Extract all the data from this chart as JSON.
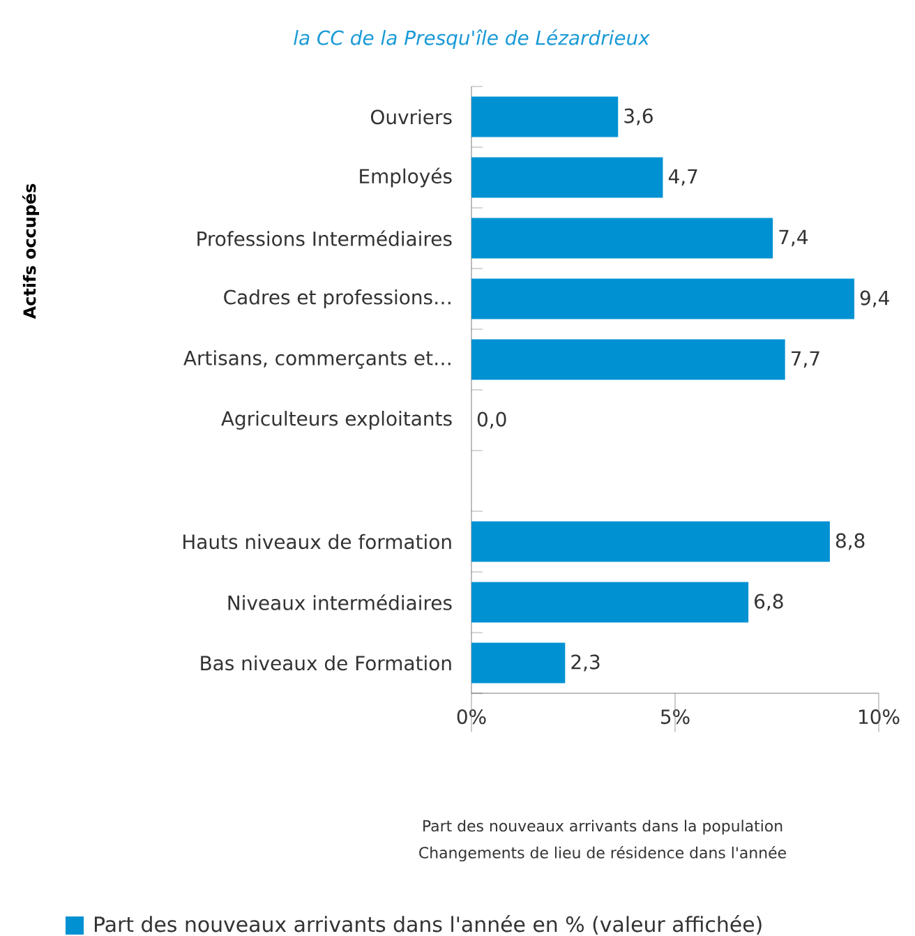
{
  "chart_data": {
    "type": "bar",
    "orientation": "horizontal",
    "title": "la CC de la Presqu'île de Lézardrieux",
    "annotations": [
      "Actifs occupés",
      "Part des nouveaux arrivants dans la population",
      "Changements de lieu de résidence dans l'année"
    ],
    "categories": [
      "Ouvriers",
      "Employés",
      "Professions Intermédiaires",
      "Cadres et professions…",
      "Artisans, commerçants et…",
      "Agriculteurs exploitants",
      null,
      "Hauts niveaux de formation",
      "Niveaux intermédiaires",
      "Bas niveaux de Formation"
    ],
    "series": [
      {
        "name": "Part des nouveaux arrivants dans l'année en % (valeur affichée)",
        "color": "#0091d3",
        "values": [
          3.6,
          4.7,
          7.4,
          9.4,
          7.7,
          0.0,
          null,
          8.8,
          6.8,
          2.3
        ],
        "value_labels": [
          "3,6",
          "4,7",
          "7,4",
          "9,4",
          "7,7",
          "0,0",
          null,
          "8,8",
          "6,8",
          "2,3"
        ]
      }
    ],
    "xlim": [
      0,
      10
    ],
    "xticks": [
      {
        "value": 0,
        "label": "0%"
      },
      {
        "value": 5,
        "label": "5%"
      },
      {
        "value": 10,
        "label": "10%"
      }
    ],
    "legend": "bottom"
  }
}
